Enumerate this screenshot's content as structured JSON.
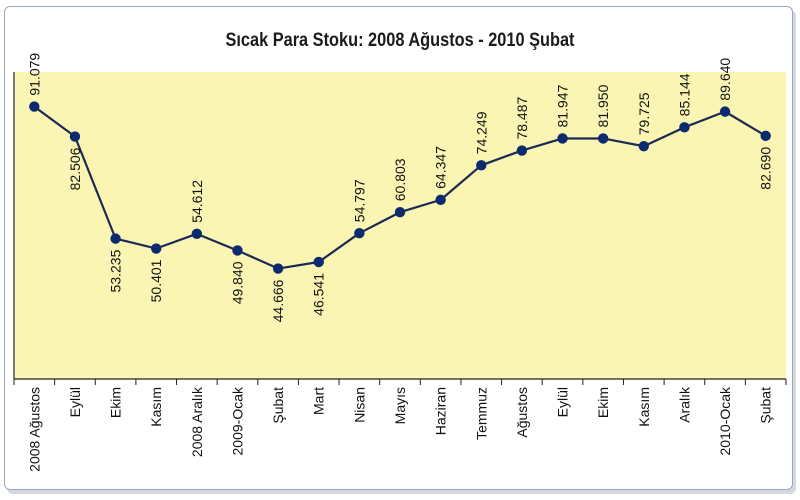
{
  "chart_data": {
    "type": "line",
    "title": "Sıcak Para Stoku: 2008 Ağustos - 2010 Şubat",
    "categories": [
      "2008 Ağustos",
      "Eylül",
      "Ekim",
      "Kasım",
      "2008 Aralık",
      "2009-Ocak",
      "Şubat",
      "Mart",
      "Nisan",
      "Mayıs",
      "Haziran",
      "Temmuz",
      "Ağustos",
      "Eylül",
      "Ekim",
      "Kasım",
      "Aralık",
      "2010-Ocak",
      "Şubat"
    ],
    "values": [
      91079,
      82506,
      53235,
      50401,
      54612,
      49840,
      44666,
      46541,
      54797,
      60803,
      64347,
      74249,
      78487,
      81947,
      81950,
      79725,
      85144,
      89640,
      82690
    ],
    "value_labels": [
      "91.079",
      "82.506",
      "53.235",
      "50.401",
      "54.612",
      "49.840",
      "44.666",
      "46.541",
      "54.797",
      "60.803",
      "64.347",
      "74.249",
      "78.487",
      "81.947",
      "81.950",
      "79.725",
      "85.144",
      "89.640",
      "82.690"
    ],
    "label_side": [
      "above",
      "below",
      "below",
      "below",
      "above",
      "below",
      "below",
      "below",
      "above",
      "above",
      "above",
      "above",
      "above",
      "above",
      "above",
      "above",
      "above",
      "above",
      "below"
    ],
    "ylim": [
      13000,
      101000
    ],
    "xlabel": "",
    "ylabel": "",
    "grid": false,
    "colors": {
      "plot_background": "#fbf5b4",
      "line": "#1a2a55",
      "marker": "#0c2a6e",
      "axis": "#222222"
    }
  }
}
